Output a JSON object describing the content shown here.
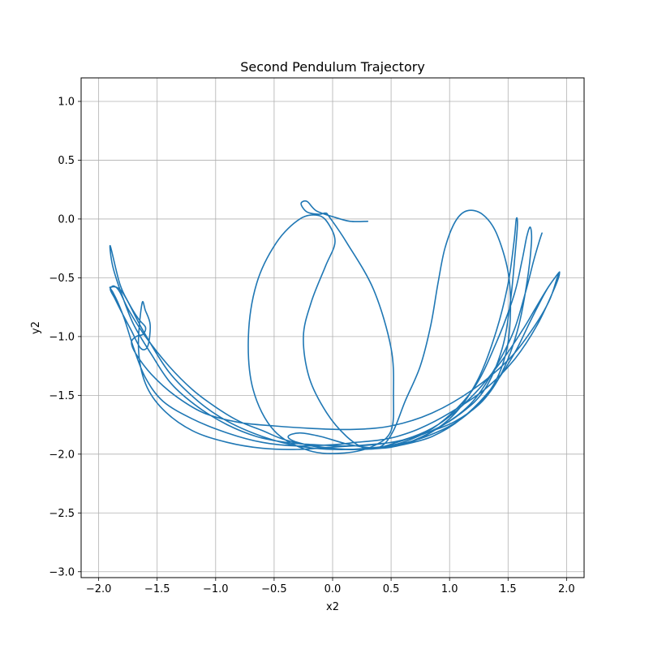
{
  "chart_data": {
    "type": "line",
    "title": "Second Pendulum Trajectory",
    "xlabel": "x2",
    "ylabel": "y2",
    "xlim": [
      -2.15,
      2.15
    ],
    "ylim": [
      -3.05,
      1.2
    ],
    "xticks": [
      -2.0,
      -1.5,
      -1.0,
      -0.5,
      0.0,
      0.5,
      1.0,
      1.5,
      2.0
    ],
    "xtick_labels": [
      "−2.0",
      "−1.5",
      "−1.0",
      "−0.5",
      "0.0",
      "0.5",
      "1.0",
      "1.5",
      "2.0"
    ],
    "yticks": [
      1.0,
      0.5,
      0.0,
      -0.5,
      -1.0,
      -1.5,
      -2.0,
      -2.5,
      -3.0
    ],
    "ytick_labels": [
      "1.0",
      "0.5",
      "0.0",
      "−0.5",
      "−1.0",
      "−1.5",
      "−2.0",
      "−2.5",
      "−3.0"
    ],
    "grid": true,
    "color": "#1f77b4",
    "series": [
      {
        "x": [
          0.3,
          0.15,
          0.0,
          -0.14,
          -0.22,
          -0.27,
          -0.22,
          -0.12,
          -0.06,
          -0.03,
          0.12,
          0.35,
          0.5,
          0.52,
          0.5,
          0.35,
          0.1,
          -0.2,
          -0.5,
          -0.68,
          -0.72,
          -0.65,
          -0.48,
          -0.28,
          -0.12,
          -0.03,
          0.02,
          -0.06,
          -0.18,
          -0.25,
          -0.2,
          -0.05,
          0.12,
          0.28,
          0.42,
          0.52,
          0.62,
          0.75,
          0.84,
          0.9,
          0.96,
          1.05,
          1.15,
          1.28,
          1.4,
          1.5,
          1.52,
          1.48,
          1.35,
          1.1,
          0.8,
          0.5,
          0.2,
          -0.1,
          -0.4,
          -0.6,
          -0.8,
          -1.0,
          -1.2,
          -1.4,
          -1.6,
          -1.74,
          -1.82,
          -1.87,
          -1.9,
          -1.86,
          -1.8,
          -1.72,
          -1.64,
          -1.58,
          -1.56,
          -1.6,
          -1.63,
          -1.66,
          -1.6,
          -1.45,
          -1.2,
          -0.9,
          -0.6,
          -0.3,
          0.0,
          0.3,
          0.6,
          0.9,
          1.2,
          1.45,
          1.62,
          1.74,
          1.83,
          1.9,
          1.94,
          1.92,
          1.85,
          1.7,
          1.5,
          1.2,
          0.85,
          0.5,
          0.15,
          -0.2,
          -0.5,
          -0.8,
          -1.1,
          -1.35,
          -1.55,
          -1.68,
          -1.72,
          -1.68,
          -1.62,
          -1.6,
          -1.66,
          -1.74,
          -1.82,
          -1.9,
          -1.88,
          -1.8,
          -1.7,
          -1.55,
          -1.38,
          -1.15,
          -0.9,
          -0.65,
          -0.4,
          -0.15,
          0.1,
          0.35,
          0.6,
          0.85,
          1.1,
          1.3,
          1.45,
          1.52,
          1.56,
          1.58,
          1.57,
          1.55,
          1.5,
          1.4,
          1.25,
          1.05,
          0.8,
          0.55,
          0.25,
          -0.05,
          -0.3,
          -0.38,
          -0.28,
          -0.1,
          0.15,
          0.4,
          0.6,
          0.85,
          1.1,
          1.35,
          1.55,
          1.7,
          1.82,
          1.9,
          1.94,
          1.9,
          1.75,
          1.55,
          1.3,
          1.0,
          0.75,
          0.55,
          0.4,
          0.2,
          0.0,
          -0.3,
          -0.6,
          -0.9,
          -1.2,
          -1.45,
          -1.6,
          -1.7,
          -1.78,
          -1.84,
          -1.88,
          -1.9,
          -1.8,
          -1.62,
          -1.4,
          -1.15,
          -0.9,
          -0.6,
          -0.3,
          0.0,
          0.3,
          0.6,
          0.9,
          1.2,
          1.4,
          1.55,
          1.62,
          1.66,
          1.69,
          1.7,
          1.66,
          1.58,
          1.45,
          1.28,
          1.05,
          0.8,
          0.55,
          0.4,
          0.65,
          0.95,
          1.2,
          1.4,
          1.55,
          1.65,
          1.72,
          1.77,
          1.79
        ],
        "y": [
          -0.02,
          -0.02,
          0.02,
          0.07,
          0.15,
          0.13,
          0.06,
          0.04,
          0.05,
          0.02,
          -0.2,
          -0.6,
          -1.1,
          -1.5,
          -1.8,
          -1.93,
          -1.99,
          -1.97,
          -1.8,
          -1.45,
          -1.0,
          -0.55,
          -0.2,
          0.0,
          0.03,
          -0.05,
          -0.2,
          -0.4,
          -0.7,
          -1.0,
          -1.35,
          -1.65,
          -1.85,
          -1.95,
          -1.93,
          -1.8,
          -1.55,
          -1.25,
          -0.9,
          -0.55,
          -0.25,
          -0.02,
          0.07,
          0.04,
          -0.12,
          -0.45,
          -0.8,
          -1.15,
          -1.45,
          -1.7,
          -1.85,
          -1.93,
          -1.96,
          -1.94,
          -1.88,
          -1.8,
          -1.72,
          -1.6,
          -1.45,
          -1.25,
          -1.0,
          -0.78,
          -0.62,
          -0.57,
          -0.6,
          -0.68,
          -0.8,
          -0.95,
          -1.1,
          -1.08,
          -0.9,
          -0.78,
          -0.72,
          -1.1,
          -1.4,
          -1.62,
          -1.8,
          -1.9,
          -1.95,
          -1.96,
          -1.94,
          -1.92,
          -1.88,
          -1.75,
          -1.5,
          -1.2,
          -0.95,
          -0.75,
          -0.6,
          -0.5,
          -0.45,
          -0.5,
          -0.7,
          -0.95,
          -1.2,
          -1.45,
          -1.65,
          -1.76,
          -1.79,
          -1.78,
          -1.76,
          -1.73,
          -1.65,
          -1.5,
          -1.32,
          -1.15,
          -1.05,
          -1.0,
          -0.98,
          -0.92,
          -0.85,
          -0.72,
          -0.55,
          -0.23,
          -0.4,
          -0.65,
          -0.9,
          -1.15,
          -1.4,
          -1.6,
          -1.75,
          -1.85,
          -1.9,
          -1.92,
          -1.93,
          -1.92,
          -1.88,
          -1.8,
          -1.65,
          -1.45,
          -1.1,
          -0.7,
          -0.3,
          -0.05,
          0.0,
          -0.2,
          -0.55,
          -0.95,
          -1.35,
          -1.65,
          -1.84,
          -1.93,
          -1.96,
          -1.95,
          -1.9,
          -1.85,
          -1.82,
          -1.85,
          -1.92,
          -1.95,
          -1.92,
          -1.85,
          -1.7,
          -1.45,
          -1.15,
          -0.85,
          -0.62,
          -0.5,
          -0.46,
          -0.58,
          -0.9,
          -1.2,
          -1.45,
          -1.65,
          -1.78,
          -1.85,
          -1.88,
          -1.9,
          -1.92,
          -1.93,
          -1.9,
          -1.82,
          -1.7,
          -1.55,
          -1.35,
          -1.1,
          -0.85,
          -0.7,
          -0.62,
          -0.58,
          -0.62,
          -0.95,
          -1.3,
          -1.55,
          -1.72,
          -1.85,
          -1.93,
          -1.96,
          -1.95,
          -1.9,
          -1.75,
          -1.45,
          -1.05,
          -0.65,
          -0.35,
          -0.15,
          -0.07,
          -0.2,
          -0.55,
          -0.95,
          -1.3,
          -1.55,
          -1.72,
          -1.82,
          -1.9,
          -1.95,
          -1.9,
          -1.75,
          -1.55,
          -1.25,
          -0.95,
          -0.62,
          -0.35,
          -0.18,
          -0.12
        ]
      }
    ]
  }
}
